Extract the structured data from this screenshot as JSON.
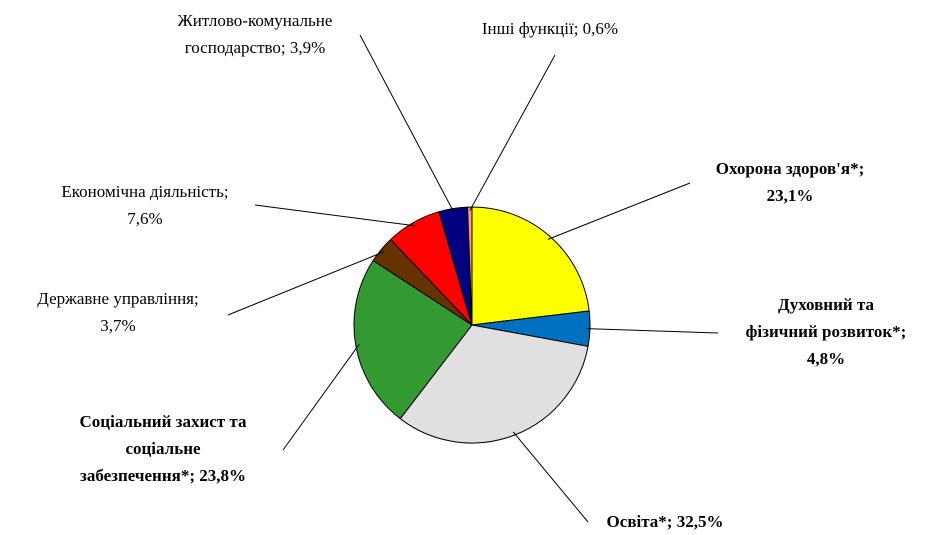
{
  "chart_data": {
    "type": "pie",
    "values": [
      23.1,
      4.8,
      32.5,
      23.8,
      3.7,
      7.6,
      3.9,
      0.6
    ],
    "value_labels": [
      [
        "Охорона здоров'я*;",
        "23,1%"
      ],
      [
        "Духовний та",
        "фізичний розвиток*;",
        "4,8%"
      ],
      [
        "Освіта*; 32,5%"
      ],
      [
        "Соціальний захист та",
        "соціальне",
        "забезпечення*; 23,8%"
      ],
      [
        "Державне управління;",
        "3,7%"
      ],
      [
        "Економічна діяльність;",
        "7,6%"
      ],
      [
        "Житлово-комунальне",
        "господарство; 3,9%"
      ],
      [
        "Інші функції; 0,6%"
      ]
    ],
    "bold": [
      true,
      true,
      true,
      true,
      false,
      false,
      false,
      false
    ],
    "colors": [
      "#ffff00",
      "#0070c0",
      "#e0e0e0",
      "#339933",
      "#663300",
      "#ff0000",
      "#000080",
      "#ff9999"
    ]
  }
}
